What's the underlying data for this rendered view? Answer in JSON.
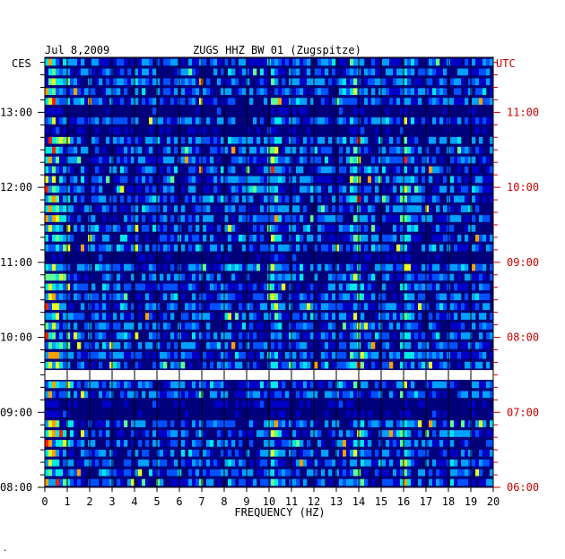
{
  "header": {
    "date": "Jul 8,2009",
    "station": "ZUGS HHZ BW 01 (Zugspitze)"
  },
  "chart_data": {
    "type": "heatmap",
    "title": "ZUGS HHZ BW 01 (Zugspitze)",
    "date": "Jul 8,2009",
    "xlabel": "FREQUENCY (HZ)",
    "xlim": [
      0,
      20
    ],
    "x_ticks": [
      "0",
      "1",
      "2",
      "3",
      "4",
      "5",
      "6",
      "7",
      "8",
      "9",
      "10",
      "11",
      "12",
      "13",
      "14",
      "15",
      "16",
      "17",
      "18",
      "19",
      "20"
    ],
    "left_axis_label": "CES",
    "right_axis_label": "UTC",
    "left_time_ticks": [
      "13:00",
      "12:00",
      "11:00",
      "10:00",
      "09:00",
      "08:00"
    ],
    "right_time_ticks": [
      "11:00",
      "10:00",
      "09:00",
      "08:00",
      "07:00",
      "06:00"
    ],
    "time_range_local": [
      "08:00",
      "13:44"
    ],
    "data_gap_local": [
      "09:23",
      "09:30"
    ],
    "colormap": [
      "#00007a",
      "#0000c8",
      "#0050ff",
      "#00a0ff",
      "#00e8e8",
      "#60ff90",
      "#e8ff20",
      "#ffa000",
      "#ff2000"
    ],
    "grid": true,
    "n_rows": 44,
    "dominant_frequencies_hz": [
      0.3,
      10.2,
      13.9,
      16.1
    ],
    "corner_mark": "."
  }
}
